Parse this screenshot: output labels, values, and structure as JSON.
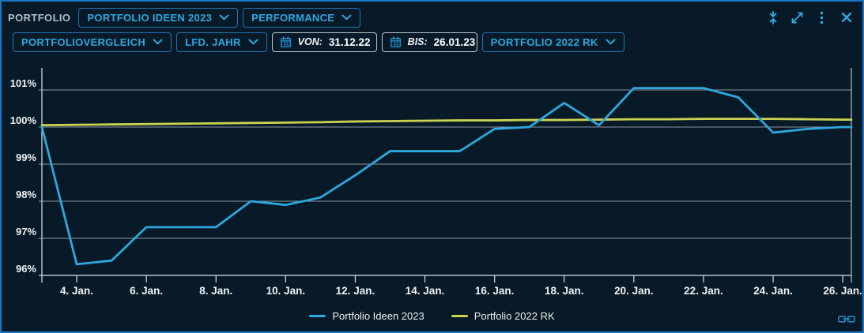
{
  "header": {
    "title": "PORTFOLIO",
    "portfolio_dropdown": "PORTFOLIO IDEEN 2023",
    "view_dropdown": "PERFORMANCE"
  },
  "filters": {
    "comparison_dropdown": "PORTFOLIOVERGLEICH",
    "period_dropdown": "LFD. JAHR",
    "from_label": "VON:",
    "from_value": "31.12.22",
    "to_label": "BIS:",
    "to_value": "26.01.23",
    "benchmark_dropdown": "PORTFOLIO 2022 RK"
  },
  "colors": {
    "background": "#081a27",
    "widget_border": "#1b76c4",
    "accent_blue": "#2fa7e0",
    "grid": "#8a97a1",
    "axis": "#d9e0e5",
    "text": "#edf2f5",
    "line_blue": "#2da7dd",
    "line_yellow": "#cbd250"
  },
  "chart_data": {
    "type": "line",
    "title": "",
    "xlabel": "",
    "ylabel": "",
    "ylim": [
      96,
      101.6
    ],
    "x_unit": "day-of-january-2023",
    "x_days": [
      3,
      4,
      5,
      6,
      7,
      8,
      9,
      10,
      11,
      12,
      13,
      14,
      15,
      16,
      17,
      18,
      19,
      20,
      21,
      22,
      23,
      24,
      25,
      26
    ],
    "series": [
      {
        "name": "Portfolio Ideen 2023",
        "color": "#2da7dd",
        "values": [
          100.0,
          96.3,
          96.4,
          97.3,
          97.3,
          97.3,
          98.0,
          97.9,
          98.1,
          98.7,
          99.35,
          99.35,
          99.35,
          99.95,
          100.0,
          100.65,
          100.05,
          101.05,
          101.05,
          101.05,
          100.8,
          99.85,
          99.95,
          100.0
        ]
      },
      {
        "name": "Portfolio 2022 RK",
        "color": "#cbd250",
        "values": [
          100.05,
          100.06,
          100.07,
          100.08,
          100.09,
          100.1,
          100.11,
          100.12,
          100.13,
          100.15,
          100.16,
          100.17,
          100.18,
          100.18,
          100.19,
          100.19,
          100.2,
          100.21,
          100.21,
          100.22,
          100.22,
          100.22,
          100.21,
          100.2
        ]
      }
    ],
    "x_ticks": [
      {
        "day": 4,
        "label": "4. Jan."
      },
      {
        "day": 6,
        "label": "6. Jan."
      },
      {
        "day": 8,
        "label": "8. Jan."
      },
      {
        "day": 10,
        "label": "10. Jan."
      },
      {
        "day": 12,
        "label": "12. Jan."
      },
      {
        "day": 14,
        "label": "14. Jan."
      },
      {
        "day": 16,
        "label": "16. Jan."
      },
      {
        "day": 18,
        "label": "18. Jan."
      },
      {
        "day": 20,
        "label": "20. Jan."
      },
      {
        "day": 22,
        "label": "22. Jan."
      },
      {
        "day": 24,
        "label": "24. Jan."
      },
      {
        "day": 26,
        "label": "26. Jan."
      }
    ],
    "y_ticks": [
      {
        "value": 101,
        "label": "101%"
      },
      {
        "value": 100,
        "label": "100%"
      },
      {
        "value": 99,
        "label": "99%"
      },
      {
        "value": 98,
        "label": "98%"
      },
      {
        "value": 97,
        "label": "97%"
      },
      {
        "value": 96,
        "label": "96%"
      }
    ],
    "legend_position": "bottom-center",
    "grid": true
  }
}
